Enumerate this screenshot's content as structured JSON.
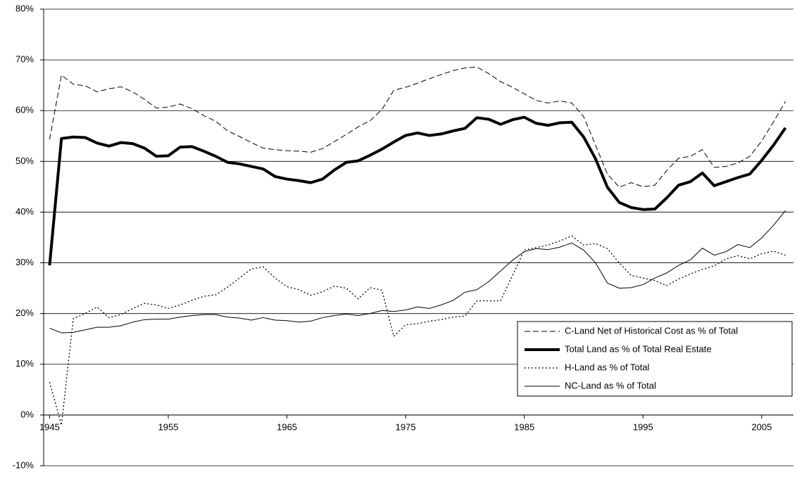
{
  "chart_data": {
    "type": "line",
    "x": [
      1945,
      1946,
      1947,
      1948,
      1949,
      1950,
      1951,
      1952,
      1953,
      1954,
      1955,
      1956,
      1957,
      1958,
      1959,
      1960,
      1961,
      1962,
      1963,
      1964,
      1965,
      1966,
      1967,
      1968,
      1969,
      1970,
      1971,
      1972,
      1973,
      1974,
      1975,
      1976,
      1977,
      1978,
      1979,
      1980,
      1981,
      1982,
      1983,
      1984,
      1985,
      1986,
      1987,
      1988,
      1989,
      1990,
      1991,
      1992,
      1993,
      1994,
      1995,
      1996,
      1997,
      1998,
      1999,
      2000,
      2001,
      2002,
      2003,
      2004,
      2005,
      2006,
      2007
    ],
    "xlim": [
      1944.5,
      2007.5
    ],
    "xticks": [
      1945,
      1955,
      1965,
      1975,
      1985,
      1995,
      2005
    ],
    "ylim": [
      -10,
      80
    ],
    "yticks": [
      {
        "value": -10,
        "label": "-10%"
      },
      {
        "value": 0,
        "label": "0%"
      },
      {
        "value": 10,
        "label": "10%"
      },
      {
        "value": 20,
        "label": "20%"
      },
      {
        "value": 30,
        "label": "30%"
      },
      {
        "value": 40,
        "label": "40%"
      },
      {
        "value": 50,
        "label": "50%"
      },
      {
        "value": 60,
        "label": "60%"
      },
      {
        "value": 70,
        "label": "70%"
      },
      {
        "value": 80,
        "label": "80%"
      }
    ],
    "grid": true,
    "legend": "right",
    "series": [
      {
        "name": "C-Land Net of Historical Cost as % of Total",
        "color": "#000000",
        "style": "dashed",
        "width": 1,
        "values": [
          54.3,
          67.0,
          65.2,
          64.9,
          63.7,
          64.3,
          64.7,
          63.7,
          62.2,
          60.5,
          60.7,
          61.3,
          60.4,
          59.0,
          57.9,
          56.0,
          54.9,
          53.7,
          52.6,
          52.3,
          52.1,
          52.0,
          51.8,
          52.5,
          53.9,
          55.3,
          56.8,
          58.0,
          60.2,
          64.0,
          64.6,
          65.4,
          66.3,
          67.1,
          67.9,
          68.4,
          68.6,
          67.3,
          65.7,
          64.6,
          63.3,
          62.0,
          61.5,
          61.9,
          61.5,
          58.8,
          53.2,
          47.5,
          44.9,
          45.8,
          45.0,
          45.3,
          48.2,
          50.6,
          51.0,
          52.3,
          48.8,
          49.0,
          49.7,
          51.0,
          54.0,
          57.8,
          61.8
        ]
      },
      {
        "name": "Total Land as % of Total Real Estate",
        "color": "#000000",
        "style": "solid",
        "width": 4,
        "values": [
          29.5,
          54.5,
          54.8,
          54.7,
          53.6,
          53.0,
          53.7,
          53.5,
          52.6,
          51.0,
          51.1,
          52.8,
          52.9,
          52.0,
          51.0,
          49.8,
          49.5,
          49.0,
          48.5,
          47.0,
          46.5,
          46.2,
          45.8,
          46.5,
          48.3,
          49.8,
          50.1,
          51.2,
          52.4,
          53.8,
          55.1,
          55.6,
          55.1,
          55.4,
          56.0,
          56.5,
          58.6,
          58.3,
          57.3,
          58.2,
          58.7,
          57.5,
          57.1,
          57.6,
          57.7,
          54.8,
          50.5,
          44.9,
          41.9,
          40.9,
          40.5,
          40.6,
          42.8,
          45.3,
          46.0,
          47.7,
          45.2,
          46.0,
          46.8,
          47.5,
          50.2,
          53.2,
          56.6
        ]
      },
      {
        "name": "H-Land as % of Total",
        "color": "#000000",
        "style": "dotted",
        "width": 1.3,
        "values": [
          6.5,
          -2.0,
          19.0,
          20.0,
          21.3,
          19.2,
          19.8,
          21.0,
          22.0,
          21.7,
          21.0,
          21.7,
          22.6,
          23.4,
          23.7,
          25.2,
          27.0,
          28.8,
          29.2,
          27.0,
          25.3,
          24.7,
          23.6,
          24.3,
          25.4,
          25.0,
          22.9,
          25.1,
          24.6,
          15.5,
          17.8,
          18.0,
          18.5,
          18.8,
          19.3,
          19.5,
          22.5,
          22.5,
          22.5,
          27.5,
          32.5,
          33.0,
          33.5,
          34.3,
          35.3,
          33.5,
          33.8,
          32.8,
          30.0,
          27.5,
          27.0,
          26.5,
          25.5,
          26.8,
          27.8,
          28.7,
          29.4,
          30.8,
          31.4,
          30.8,
          31.8,
          32.3,
          31.5
        ]
      },
      {
        "name": "NC-Land as % of Total",
        "color": "#000000",
        "style": "solid",
        "width": 1,
        "values": [
          17.1,
          16.2,
          16.3,
          16.8,
          17.3,
          17.3,
          17.6,
          18.3,
          18.8,
          18.9,
          18.9,
          19.3,
          19.6,
          19.8,
          19.8,
          19.3,
          19.1,
          18.7,
          19.2,
          18.7,
          18.6,
          18.3,
          18.5,
          19.2,
          19.6,
          19.9,
          19.6,
          20.0,
          20.6,
          20.4,
          20.7,
          21.3,
          21.0,
          21.7,
          22.6,
          24.2,
          24.7,
          26.3,
          28.4,
          30.5,
          32.2,
          32.8,
          32.6,
          33.1,
          33.9,
          32.5,
          30.0,
          26.0,
          25.0,
          25.1,
          25.7,
          27.0,
          28.0,
          29.5,
          30.6,
          32.9,
          31.5,
          32.2,
          33.6,
          33.0,
          34.9,
          37.4,
          40.3
        ]
      }
    ]
  }
}
